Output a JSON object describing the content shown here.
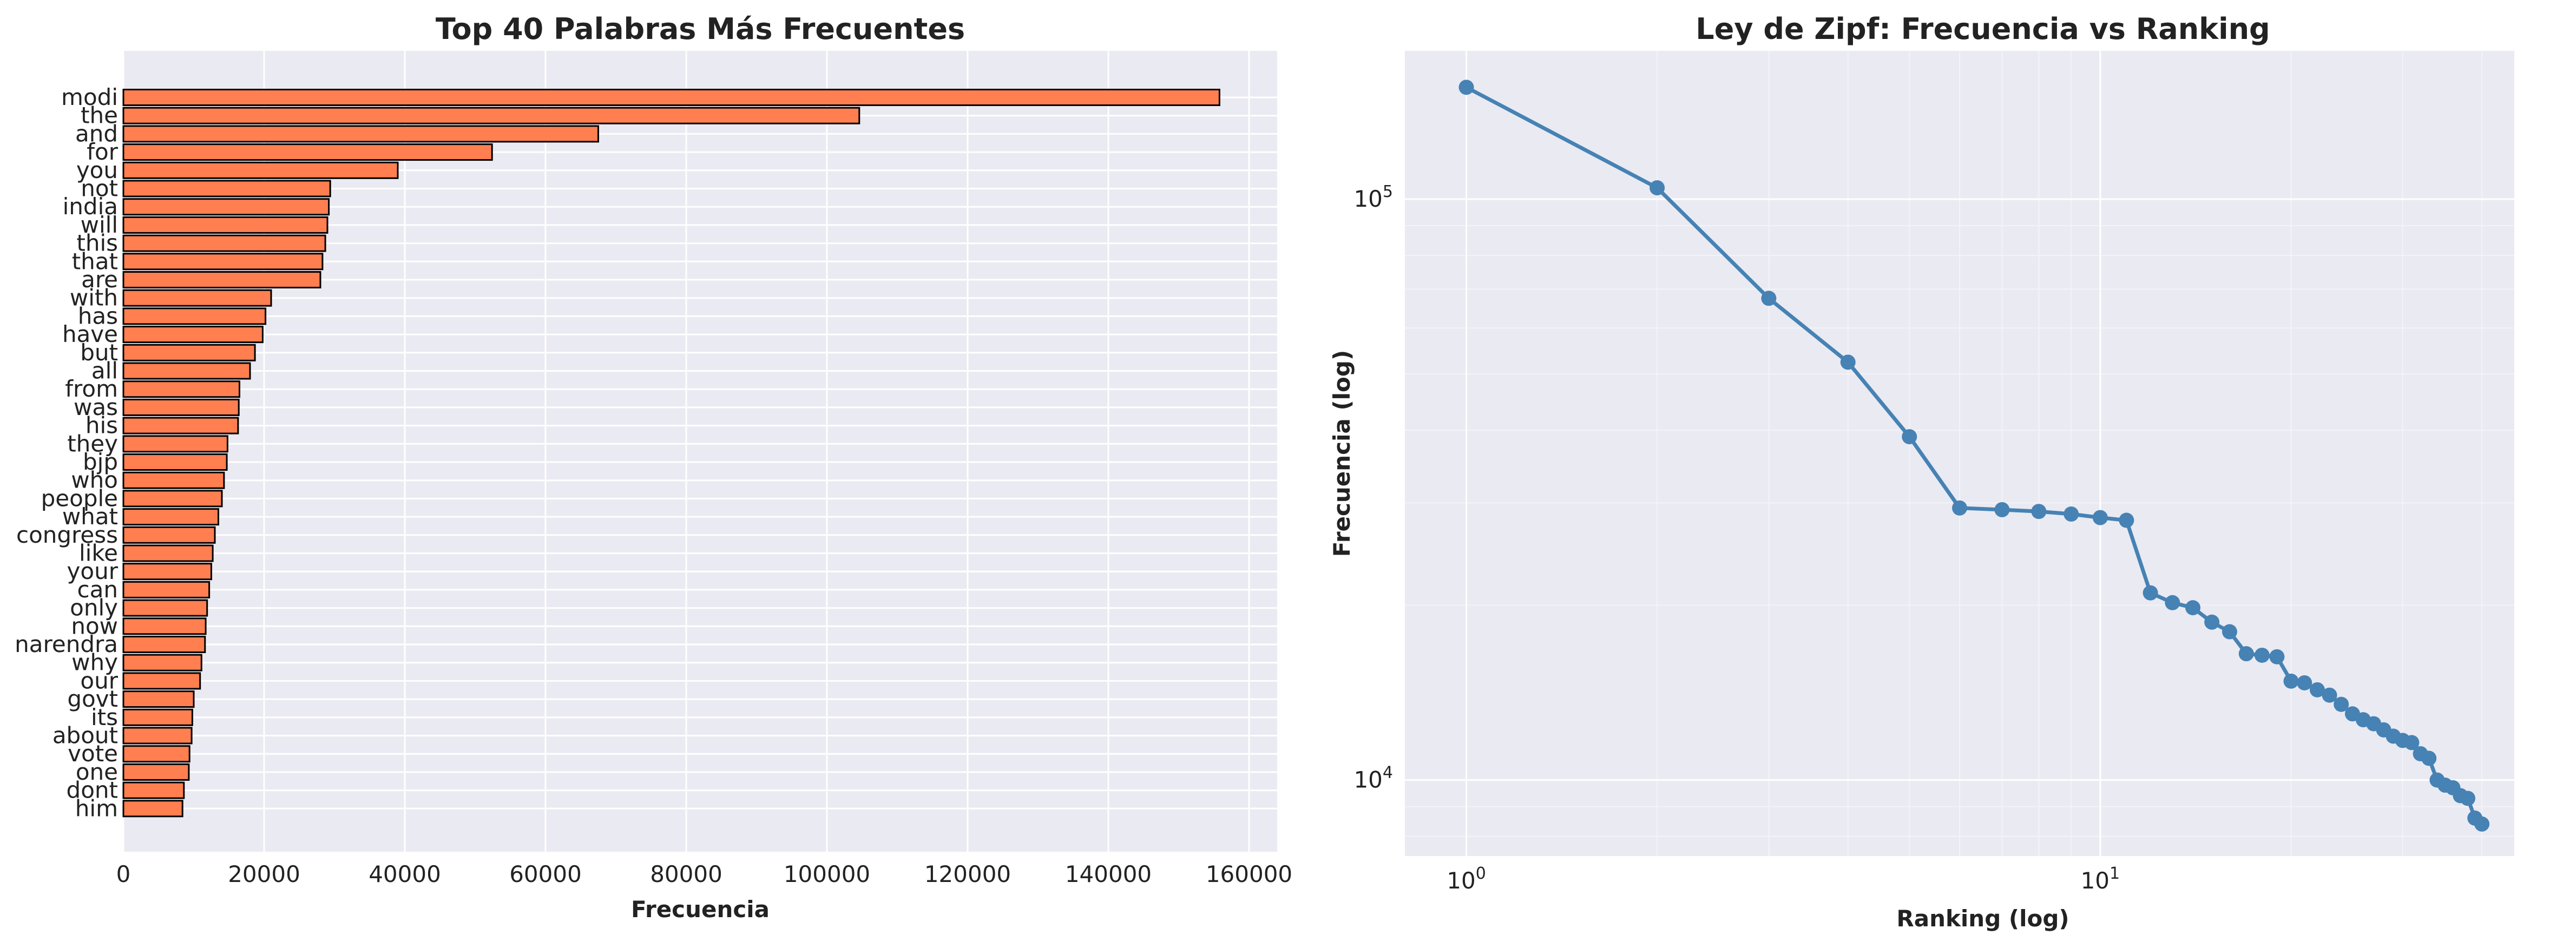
{
  "chart_data": [
    {
      "type": "bar",
      "orientation": "horizontal",
      "title": "Top 40 Palabras Más Frecuentes",
      "xlabel": "Frecuencia",
      "ylabel": "",
      "xlim": [
        0,
        164000
      ],
      "xticks": [
        0,
        20000,
        40000,
        60000,
        80000,
        100000,
        120000,
        140000,
        160000
      ],
      "grid": true,
      "bar_color": "#ff7f50",
      "bar_edge_color": "#000000",
      "background_color": "#eaeaf2",
      "categories": [
        "modi",
        "the",
        "and",
        "for",
        "you",
        "not",
        "india",
        "will",
        "this",
        "that",
        "are",
        "with",
        "has",
        "have",
        "but",
        "all",
        "from",
        "was",
        "his",
        "they",
        "bjp",
        "who",
        "people",
        "what",
        "congress",
        "like",
        "your",
        "can",
        "only",
        "now",
        "narendra",
        "why",
        "our",
        "govt",
        "its",
        "about",
        "vote",
        "one",
        "dont",
        "him"
      ],
      "values": [
        155800,
        104600,
        67500,
        52400,
        39000,
        29400,
        29200,
        29000,
        28700,
        28300,
        28000,
        21000,
        20200,
        19800,
        18700,
        18000,
        16500,
        16400,
        16300,
        14800,
        14700,
        14300,
        14000,
        13500,
        13000,
        12700,
        12500,
        12200,
        11900,
        11700,
        11600,
        11100,
        10900,
        10000,
        9800,
        9700,
        9400,
        9300,
        8600,
        8400
      ]
    },
    {
      "type": "line",
      "title": "Ley de Zipf: Frecuencia vs Ranking",
      "xlabel": "Ranking (log)",
      "ylabel": "Frecuencia (log)",
      "xscale": "log",
      "yscale": "log",
      "xlim": [
        0.8,
        45
      ],
      "ylim": [
        7400,
        180000
      ],
      "xtick_labels": [
        "10^0",
        "10^1"
      ],
      "ytick_labels": [
        "10^4",
        "10^5"
      ],
      "grid": true,
      "line_color": "#4682b4",
      "background_color": "#eaeaf2",
      "x": [
        1,
        2,
        3,
        4,
        5,
        6,
        7,
        8,
        9,
        10,
        11,
        12,
        13,
        14,
        15,
        16,
        17,
        18,
        19,
        20,
        21,
        22,
        23,
        24,
        25,
        26,
        27,
        28,
        29,
        30,
        31,
        32,
        33,
        34,
        35,
        36,
        37,
        38,
        39,
        40
      ],
      "y": [
        155800,
        104600,
        67500,
        52400,
        39000,
        29400,
        29200,
        29000,
        28700,
        28300,
        28000,
        21000,
        20200,
        19800,
        18700,
        18000,
        16500,
        16400,
        16300,
        14800,
        14700,
        14300,
        14000,
        13500,
        13000,
        12700,
        12500,
        12200,
        11900,
        11700,
        11600,
        11100,
        10900,
        10000,
        9800,
        9700,
        9400,
        9300,
        8600,
        8400
      ]
    }
  ]
}
